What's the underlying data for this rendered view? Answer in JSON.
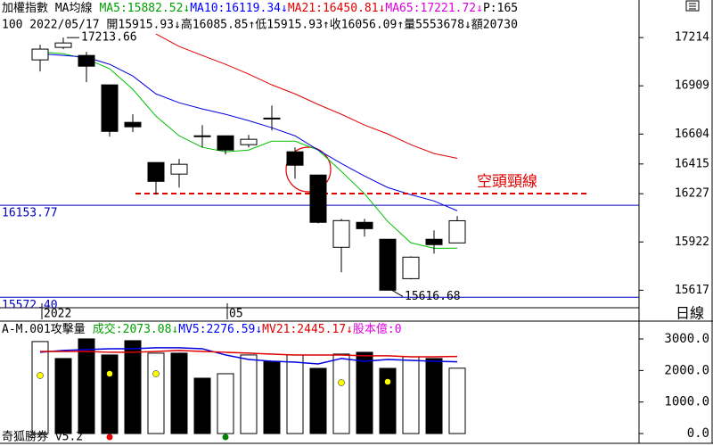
{
  "chart_data": [
    {
      "type": "candlestick",
      "title": "加權指數 MA均線",
      "header": [
        {
          "text": "MA5:15882.52↓",
          "color": "#00a000"
        },
        {
          "text": "MA10:16119.34↓",
          "color": "#0000ff"
        },
        {
          "text": "MA21:16450.81↓",
          "color": "#e00000"
        },
        {
          "text": "MA65:17221.72↓",
          "color": "#e000e0"
        },
        {
          "text": "P:165",
          "color": "#000000"
        }
      ],
      "info": "100 2022/05/17 開15915.93↓高16085.85↑低15915.93↑收16056.09↑量5553678↓額20730",
      "categories": [
        "2022",
        null,
        null,
        null,
        null,
        null,
        null,
        null,
        "05",
        null,
        null,
        null,
        null,
        null,
        null,
        null,
        null,
        null,
        null
      ],
      "open": [
        17073,
        17152,
        17101,
        16915,
        16678,
        16424,
        16351,
        16593,
        16593,
        16537,
        16705,
        16492,
        16345,
        15888,
        16046,
        15939,
        15690,
        15939,
        15915.93
      ],
      "high": [
        17169,
        17213.66,
        17124,
        16915,
        16729,
        16424,
        16447,
        16661,
        16593,
        16599,
        16785,
        16520,
        16345,
        16068,
        16068,
        15939,
        15831,
        15995,
        16085.85
      ],
      "low": [
        17000,
        17141,
        16932,
        16588,
        16616,
        16221,
        16266,
        16520,
        16475,
        16520,
        16627,
        16322,
        16040,
        15730,
        15956,
        15616.68,
        15685,
        15848,
        15915.93
      ],
      "close": [
        17141,
        17180,
        17033,
        16621,
        16650,
        16305,
        16413,
        16593,
        16503,
        16571,
        16700,
        16407,
        16046,
        16057,
        16006,
        15617,
        15826,
        15905,
        16056.09
      ],
      "up_color": "#ffffff",
      "down_color": "#000000",
      "series": [
        {
          "color": "#00c000",
          "values": [
            17124,
            17112,
            17079,
            17017,
            16887,
            16717,
            16593,
            16520,
            16492,
            16503,
            16559,
            16559,
            16503,
            16368,
            16227,
            16052,
            15917,
            15882,
            15882.52
          ]
        },
        {
          "color": "#0000e0",
          "values": [
            17112,
            17101,
            17090,
            17045,
            16971,
            16858,
            16802,
            16763,
            16729,
            16689,
            16644,
            16593,
            16503,
            16418,
            16339,
            16266,
            16221,
            16181,
            16119.34
          ]
        },
        {
          "color": "#e00000",
          "values": [
            null,
            null,
            null,
            null,
            null,
            17237,
            17158,
            17101,
            17045,
            16983,
            16915,
            16858,
            16791,
            16729,
            16661,
            16605,
            16537,
            16481,
            16450.81
          ]
        }
      ],
      "hlines": [
        {
          "value": 16153.77,
          "color": "#0000c0"
        },
        {
          "value": 15572.4,
          "label": "15572.40",
          "color": "#0000c0"
        }
      ],
      "annotations": [
        {
          "index": 1,
          "value": 17213.66
        },
        {
          "index": 15,
          "value": 15616.68
        }
      ],
      "neckline": {
        "value": 16228,
        "label": "空頭頸線",
        "from": 4,
        "color": "#e00000"
      },
      "ylim": [
        15540,
        17350
      ],
      "yticks": [
        15617,
        15922,
        16227,
        16415,
        16604,
        16909,
        17214
      ]
    },
    {
      "type": "bar",
      "title": "A-M.001攻擊量",
      "header": [
        {
          "text": "成交:2073.08↓",
          "color": "#00a000"
        },
        {
          "text": "MV5:2276.59↓",
          "color": "#0000ff"
        },
        {
          "text": "MV21:2445.17↓",
          "color": "#e00000"
        },
        {
          "text": "股本億:0",
          "color": "#e000e0"
        }
      ],
      "values": [
        2918,
        2380,
        3003,
        2493,
        2946,
        2550,
        2550,
        1756,
        1898,
        2493,
        2295,
        2493,
        2068,
        2521,
        2578,
        2068,
        2436,
        2380,
        2073.08
      ],
      "fills": [
        "#ffffff",
        "#000000",
        "#000000",
        "#000000",
        "#000000",
        "#ffffff",
        "#000000",
        "#000000",
        "#ffffff",
        "#ffffff",
        "#000000",
        "#ffffff",
        "#000000",
        "#ffffff",
        "#000000",
        "#000000",
        "#ffffff",
        "#000000",
        "#ffffff"
      ],
      "series": [
        {
          "color": "#0000e0",
          "values": [
            2578,
            2635,
            2663,
            2691,
            2691,
            2720,
            2720,
            2691,
            2493,
            2351,
            2295,
            2266,
            2210,
            2380,
            2295,
            2351,
            2323,
            2295,
            2276.59
          ]
        },
        {
          "color": "#e00000",
          "values": [
            2606,
            2606,
            2606,
            2578,
            2578,
            2606,
            2635,
            2606,
            2578,
            2550,
            2521,
            2493,
            2493,
            2493,
            2465,
            2465,
            2436,
            2436,
            2445.17
          ]
        }
      ],
      "ylim": [
        -310,
        3510
      ],
      "yticks": [
        {
          "value": 0,
          "label": "0.0"
        },
        {
          "value": 1000,
          "label": "1000.0"
        },
        {
          "value": 2000,
          "label": "2000.0"
        },
        {
          "value": 3000,
          "label": "3000.0"
        }
      ]
    }
  ],
  "period": "日線",
  "footer": "奇狐勝券 v5.2"
}
